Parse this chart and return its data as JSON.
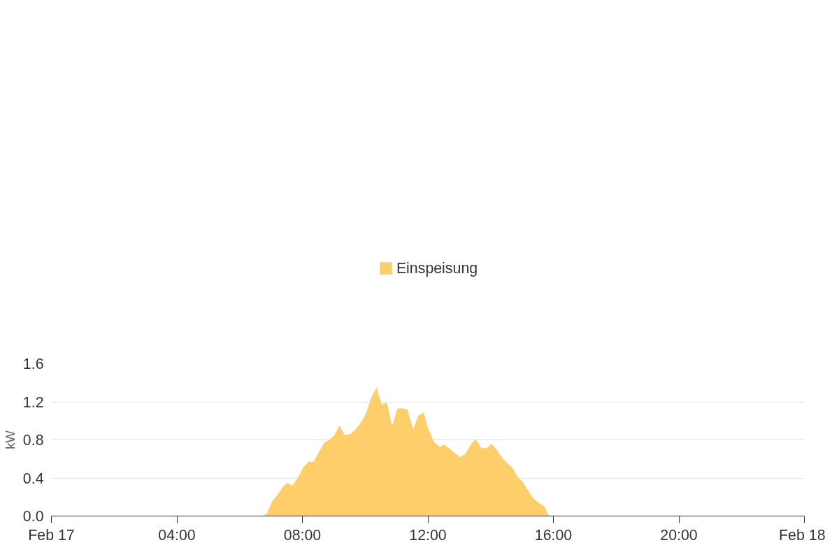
{
  "chart_data": {
    "type": "area",
    "ylabel": "kW",
    "x": [
      0,
      6.28,
      6.68,
      6.86,
      7.03,
      7.2,
      7.36,
      7.52,
      7.68,
      7.87,
      8.03,
      8.2,
      8.36,
      8.52,
      8.7,
      8.86,
      9.02,
      9.18,
      9.35,
      9.52,
      9.7,
      9.86,
      10.02,
      10.18,
      10.36,
      10.53,
      10.69,
      10.86,
      11.03,
      11.2,
      11.35,
      11.53,
      11.69,
      11.86,
      12.02,
      12.19,
      12.37,
      12.53,
      12.68,
      12.86,
      13.03,
      13.19,
      13.35,
      13.52,
      13.69,
      13.86,
      14.03,
      14.19,
      14.35,
      14.51,
      14.69,
      14.86,
      15.02,
      15.19,
      15.35,
      15.52,
      15.69,
      15.85,
      16.02,
      24
    ],
    "series": [
      {
        "name": "Einspeisung",
        "color": "#fdce69",
        "values": [
          0,
          0,
          0.0,
          0.02,
          0.15,
          0.22,
          0.3,
          0.35,
          0.32,
          0.41,
          0.51,
          0.57,
          0.57,
          0.67,
          0.77,
          0.8,
          0.85,
          0.95,
          0.85,
          0.86,
          0.91,
          0.98,
          1.07,
          1.23,
          1.35,
          1.17,
          1.19,
          0.95,
          1.13,
          1.13,
          1.12,
          0.91,
          1.05,
          1.09,
          0.91,
          0.78,
          0.73,
          0.75,
          0.71,
          0.66,
          0.62,
          0.65,
          0.74,
          0.81,
          0.72,
          0.71,
          0.76,
          0.7,
          0.62,
          0.56,
          0.51,
          0.41,
          0.36,
          0.27,
          0.19,
          0.14,
          0.11,
          0.01,
          0.0,
          0
        ]
      }
    ],
    "xlim": [
      0,
      24
    ],
    "xticks": [
      {
        "value": 0,
        "label": "Feb 17"
      },
      {
        "value": 4,
        "label": "04:00"
      },
      {
        "value": 8,
        "label": "08:00"
      },
      {
        "value": 12,
        "label": "12:00"
      },
      {
        "value": 16,
        "label": "16:00"
      },
      {
        "value": 20,
        "label": "20:00"
      },
      {
        "value": 24,
        "label": "Feb 18"
      }
    ],
    "ylim": [
      0,
      1.6
    ],
    "yticks": [
      {
        "value": 0,
        "label": "0.0"
      },
      0.4,
      0.8,
      1.2,
      1.6
    ],
    "grid": "y",
    "legend": "top"
  }
}
